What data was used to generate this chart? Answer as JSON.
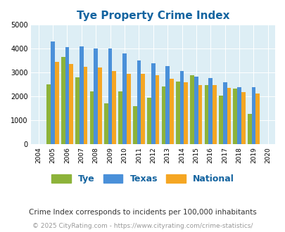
{
  "title": "Tye Property Crime Index",
  "all_years": [
    2004,
    2005,
    2006,
    2007,
    2008,
    2009,
    2010,
    2011,
    2012,
    2013,
    2014,
    2015,
    2016,
    2017,
    2018,
    2019,
    2020
  ],
  "bar_years": [
    2005,
    2006,
    2007,
    2008,
    2009,
    2010,
    2011,
    2012,
    2013,
    2014,
    2015,
    2016,
    2017,
    2018,
    2019
  ],
  "tye": [
    2500,
    3650,
    2800,
    2200,
    1700,
    2200,
    1600,
    1950,
    2420,
    2620,
    2880,
    2460,
    2030,
    2320,
    1250
  ],
  "texas": [
    4300,
    4060,
    4100,
    4000,
    4020,
    3800,
    3500,
    3380,
    3260,
    3050,
    2830,
    2760,
    2580,
    2380,
    2380
  ],
  "national": [
    3450,
    3350,
    3250,
    3200,
    3050,
    2950,
    2950,
    2880,
    2730,
    2600,
    2480,
    2470,
    2350,
    2190,
    2130
  ],
  "tye_color": "#8db33a",
  "texas_color": "#4a90d9",
  "national_color": "#f5a623",
  "bg_color": "#ddeef5",
  "title_color": "#1464a0",
  "ylim": [
    0,
    5000
  ],
  "yticks": [
    0,
    1000,
    2000,
    3000,
    4000,
    5000
  ],
  "subtitle": "Crime Index corresponds to incidents per 100,000 inhabitants",
  "footer": "© 2025 CityRating.com - https://www.cityrating.com/crime-statistics/",
  "subtitle_color": "#333333",
  "footer_color": "#999999"
}
